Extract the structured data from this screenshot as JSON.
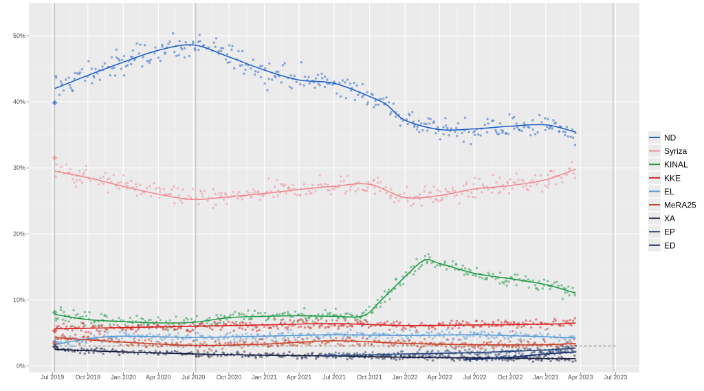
{
  "chart_data": {
    "type": "scatter",
    "title": "",
    "xlabel": "",
    "ylabel": "",
    "ylim": [
      -1,
      55
    ],
    "xlim": [
      "2019-05-01",
      "2023-09-01"
    ],
    "threshold": 3,
    "x_ticks": [
      {
        "date": "2019-07-01",
        "label": "Jul 2019"
      },
      {
        "date": "2019-10-01",
        "label": "Oct 2019"
      },
      {
        "date": "2020-01-01",
        "label": "Jan 2020"
      },
      {
        "date": "2020-04-01",
        "label": "Apr 2020"
      },
      {
        "date": "2020-07-01",
        "label": "Jul 2020"
      },
      {
        "date": "2020-10-01",
        "label": "Oct 2020"
      },
      {
        "date": "2021-01-01",
        "label": "Jan 2021"
      },
      {
        "date": "2021-04-01",
        "label": "Apr 2021"
      },
      {
        "date": "2021-07-01",
        "label": "Jul 2021"
      },
      {
        "date": "2021-10-01",
        "label": "Oct 2021"
      },
      {
        "date": "2022-01-01",
        "label": "Jan 2022"
      },
      {
        "date": "2022-04-01",
        "label": "Apr 2022"
      },
      {
        "date": "2022-07-01",
        "label": "Jul 2022"
      },
      {
        "date": "2022-10-01",
        "label": "Oct 2022"
      },
      {
        "date": "2023-01-01",
        "label": "Jan 2023"
      },
      {
        "date": "2023-04-01",
        "label": "Apr 2023"
      },
      {
        "date": "2023-07-01",
        "label": "Jul 2023"
      }
    ],
    "y_ticks": [
      {
        "value": 0,
        "label": "0%"
      },
      {
        "value": 10,
        "label": "10%"
      },
      {
        "value": 20,
        "label": "20%"
      },
      {
        "value": 30,
        "label": "30%"
      },
      {
        "value": 40,
        "label": "40%"
      },
      {
        "value": 50,
        "label": "50%"
      }
    ],
    "vlines": [
      "2019-07-07",
      "2020-07-07",
      "2023-06-25"
    ],
    "series": [
      {
        "name": "ND",
        "color": "#1f5fc6",
        "election": 39.85,
        "trend": [
          [
            "2019-07-07",
            42
          ],
          [
            "2019-10-01",
            44
          ],
          [
            "2020-01-01",
            46
          ],
          [
            "2020-04-01",
            47.8
          ],
          [
            "2020-07-01",
            48.6
          ],
          [
            "2020-10-01",
            46.8
          ],
          [
            "2021-01-01",
            44.8
          ],
          [
            "2021-04-01",
            43.3
          ],
          [
            "2021-07-01",
            42.8
          ],
          [
            "2021-10-01",
            40.8
          ],
          [
            "2021-11-15",
            39.5
          ],
          [
            "2022-01-01",
            37.2
          ],
          [
            "2022-04-01",
            35.8
          ],
          [
            "2022-07-01",
            35.9
          ],
          [
            "2022-10-01",
            36.3
          ],
          [
            "2023-01-01",
            36.5
          ],
          [
            "2023-03-20",
            35.4
          ]
        ],
        "noise": 2.2
      },
      {
        "name": "Syriza",
        "color": "#f08a93",
        "election": 31.5,
        "trend": [
          [
            "2019-07-07",
            29.5
          ],
          [
            "2019-10-01",
            28.5
          ],
          [
            "2020-01-01",
            27.2
          ],
          [
            "2020-04-01",
            26
          ],
          [
            "2020-07-01",
            25.2
          ],
          [
            "2020-10-01",
            25.6
          ],
          [
            "2021-01-01",
            26.1
          ],
          [
            "2021-04-01",
            26.7
          ],
          [
            "2021-07-01",
            27.2
          ],
          [
            "2021-10-01",
            27.5
          ],
          [
            "2022-01-01",
            25.5
          ],
          [
            "2022-04-01",
            25.8
          ],
          [
            "2022-07-01",
            26.8
          ],
          [
            "2022-10-01",
            27.3
          ],
          [
            "2023-01-01",
            28.2
          ],
          [
            "2023-03-20",
            29.8
          ]
        ],
        "noise": 1.8
      },
      {
        "name": "KINAL",
        "color": "#1f9a48",
        "election": 8.1,
        "trend": [
          [
            "2019-07-07",
            7.8
          ],
          [
            "2019-10-01",
            7
          ],
          [
            "2020-01-01",
            6.7
          ],
          [
            "2020-04-01",
            6.5
          ],
          [
            "2020-07-01",
            6.6
          ],
          [
            "2020-10-01",
            7.3
          ],
          [
            "2021-01-01",
            7.5
          ],
          [
            "2021-04-01",
            7.6
          ],
          [
            "2021-07-01",
            7.5
          ],
          [
            "2021-09-15",
            7.6
          ],
          [
            "2021-11-01",
            10
          ],
          [
            "2022-01-01",
            13.5
          ],
          [
            "2022-02-20",
            16
          ],
          [
            "2022-04-01",
            15.5
          ],
          [
            "2022-07-01",
            14
          ],
          [
            "2022-10-01",
            13.2
          ],
          [
            "2023-01-01",
            12.3
          ],
          [
            "2023-03-20",
            11
          ]
        ],
        "noise": 1.3
      },
      {
        "name": "KKE",
        "color": "#d51f1f",
        "election": 5.3,
        "trend": [
          [
            "2019-07-07",
            5.6
          ],
          [
            "2020-01-01",
            5.8
          ],
          [
            "2020-07-01",
            6
          ],
          [
            "2021-01-01",
            6.2
          ],
          [
            "2021-07-01",
            6.4
          ],
          [
            "2022-01-01",
            6.1
          ],
          [
            "2022-07-01",
            6.2
          ],
          [
            "2023-01-01",
            6.3
          ],
          [
            "2023-03-20",
            6.5
          ]
        ],
        "noise": 0.9
      },
      {
        "name": "EL",
        "color": "#5a9bd6",
        "election": 3.7,
        "trend": [
          [
            "2019-07-07",
            3.2
          ],
          [
            "2019-10-01",
            4.1
          ],
          [
            "2020-01-01",
            4.5
          ],
          [
            "2020-07-01",
            4.3
          ],
          [
            "2021-01-01",
            4.5
          ],
          [
            "2021-07-01",
            4.7
          ],
          [
            "2022-01-01",
            4.6
          ],
          [
            "2022-07-01",
            4.7
          ],
          [
            "2023-01-01",
            4.4
          ],
          [
            "2023-03-20",
            4.2
          ]
        ],
        "noise": 0.9
      },
      {
        "name": "MeRA25",
        "color": "#c7422b",
        "election": 3.4,
        "trend": [
          [
            "2019-07-07",
            4.3
          ],
          [
            "2020-01-01",
            3.6
          ],
          [
            "2020-07-01",
            3.1
          ],
          [
            "2021-01-01",
            3.3
          ],
          [
            "2021-07-01",
            3.8
          ],
          [
            "2022-01-01",
            3.4
          ],
          [
            "2022-07-01",
            3.2
          ],
          [
            "2023-01-01",
            3.2
          ],
          [
            "2023-03-20",
            3.4
          ]
        ],
        "noise": 0.8
      },
      {
        "name": "XA",
        "color": "#141a3e",
        "election": 2.9,
        "trend": [
          [
            "2019-07-07",
            2.5
          ],
          [
            "2020-01-01",
            2.1
          ],
          [
            "2020-07-01",
            1.8
          ],
          [
            "2021-01-01",
            1.6
          ],
          [
            "2021-07-01",
            1.5
          ],
          [
            "2022-01-01",
            1.3
          ],
          [
            "2022-07-01",
            1.2
          ],
          [
            "2023-01-01",
            1.1
          ],
          [
            "2023-03-20",
            1.1
          ]
        ],
        "noise": 0.5
      },
      {
        "name": "EP",
        "color": "#27467a",
        "election": null,
        "trend": [
          [
            "2021-06-01",
            1.5
          ],
          [
            "2022-01-01",
            1.8
          ],
          [
            "2022-07-01",
            2
          ],
          [
            "2023-01-01",
            2.4
          ],
          [
            "2023-03-20",
            2.7
          ]
        ],
        "noise": 0.6
      },
      {
        "name": "ED",
        "color": "#1b2f6e",
        "election": null,
        "trend": [
          [
            "2022-06-01",
            0.9
          ],
          [
            "2022-10-01",
            1.3
          ],
          [
            "2023-01-01",
            1.8
          ],
          [
            "2023-03-20",
            2.1
          ]
        ],
        "noise": 0.5
      }
    ]
  }
}
